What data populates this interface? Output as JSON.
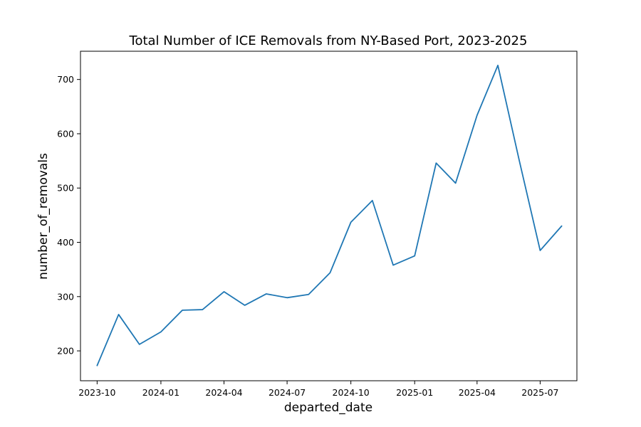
{
  "chart_data": {
    "type": "line",
    "title": "Total Number of ICE Removals from NY-Based Port, 2023-2025",
    "xlabel": "departed_date",
    "ylabel": "number_of_removals",
    "x_ticks": [
      "2023-10",
      "2024-01",
      "2024-04",
      "2024-07",
      "2024-10",
      "2025-01",
      "2025-04",
      "2025-07"
    ],
    "y_ticks": [
      200,
      300,
      400,
      500,
      600,
      700
    ],
    "xlim": [
      "2023-09-07",
      "2025-08-23"
    ],
    "ylim": [
      145,
      752
    ],
    "grid": false,
    "legend": "none",
    "line_color": "#1f77b4",
    "series": [
      {
        "x": [
          "2023-10-01",
          "2023-11-01",
          "2023-12-01",
          "2024-01-01",
          "2024-02-01",
          "2024-03-01",
          "2024-04-01",
          "2024-05-01",
          "2024-06-01",
          "2024-07-01",
          "2024-08-01",
          "2024-09-01",
          "2024-10-01",
          "2024-11-01",
          "2024-12-01",
          "2025-01-01",
          "2025-02-01",
          "2025-03-01",
          "2025-04-01",
          "2025-05-01",
          "2025-06-01",
          "2025-07-01",
          "2025-08-01"
        ],
        "values": [
          173,
          267,
          212,
          235,
          275,
          276,
          309,
          284,
          305,
          298,
          304,
          344,
          437,
          477,
          358,
          375,
          546,
          509,
          634,
          726,
          550,
          385,
          430
        ]
      }
    ]
  }
}
